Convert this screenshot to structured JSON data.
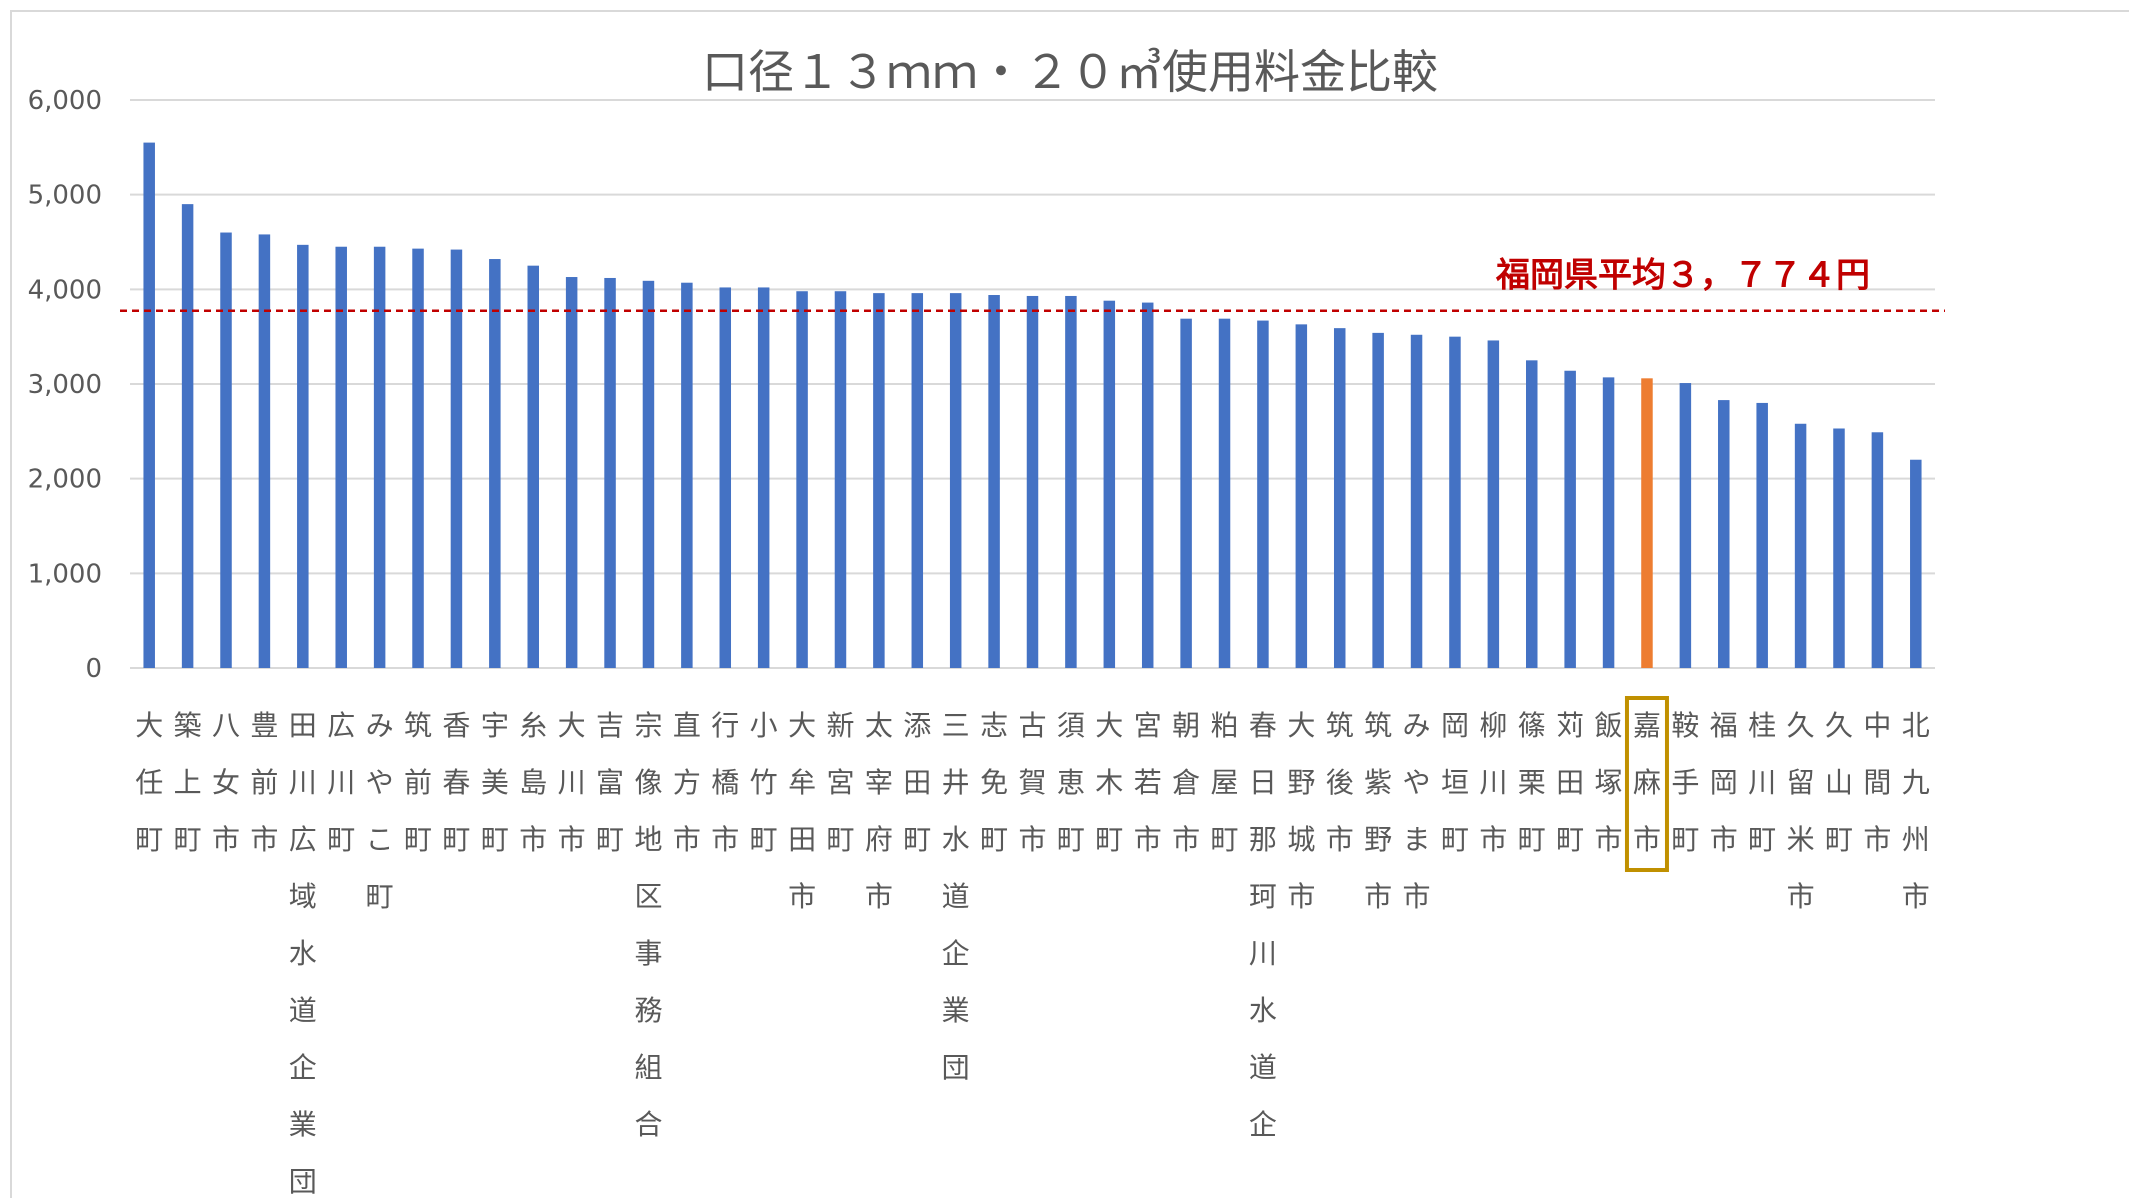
{
  "chart_data": {
    "type": "bar",
    "title": "口径１３ｍｍ・２０㎥使用料金比較",
    "xlabel": "",
    "ylabel": "",
    "ylim": [
      0,
      6000
    ],
    "yticks": [
      0,
      1000,
      2000,
      3000,
      4000,
      5000,
      6000
    ],
    "ytick_labels": [
      "0",
      "1,000",
      "2,000",
      "3,000",
      "4,000",
      "5,000",
      "6,000"
    ],
    "grid": true,
    "legend": "none",
    "categories": [
      "大任町",
      "築上町",
      "八女市",
      "豊前市",
      "田川広域水道企業団",
      "広川町",
      "みやこ町",
      "筑前町",
      "香春町",
      "宇美町",
      "糸島市",
      "大川市",
      "吉富町",
      "宗像地区事務組合",
      "直方市",
      "行橋市",
      "小竹町",
      "大牟田市",
      "新宮町",
      "太宰府市",
      "添田町",
      "三井水道企業団",
      "志免町",
      "古賀市",
      "須恵町",
      "大木町",
      "宮若市",
      "朝倉市",
      "粕屋町",
      "春日那珂川水道企",
      "大野城市",
      "筑後市",
      "筑紫野市",
      "みやま市",
      "岡垣町",
      "柳川市",
      "篠栗町",
      "苅田町",
      "飯塚市",
      "嘉麻市",
      "鞍手町",
      "福岡市",
      "桂川町",
      "久留米市",
      "久山町",
      "中間市",
      "北九州市"
    ],
    "values": [
      5550,
      4900,
      4600,
      4580,
      4470,
      4450,
      4450,
      4430,
      4420,
      4320,
      4250,
      4130,
      4120,
      4090,
      4070,
      4020,
      4020,
      3980,
      3980,
      3960,
      3960,
      3960,
      3940,
      3930,
      3930,
      3880,
      3860,
      3690,
      3690,
      3670,
      3630,
      3590,
      3540,
      3520,
      3500,
      3460,
      3250,
      3140,
      3070,
      3060,
      3010,
      2830,
      2800,
      2580,
      2530,
      2490,
      2200
    ],
    "colors": {
      "bar": "#4472c4",
      "highlight": "#ed7d31",
      "average_line": "#c00000",
      "highlight_box": "#c09000",
      "grid": "#d9d9d9"
    },
    "highlight_category": "嘉麻市",
    "average": {
      "value": 3774,
      "label": "福岡県平均３，７７４円"
    }
  }
}
